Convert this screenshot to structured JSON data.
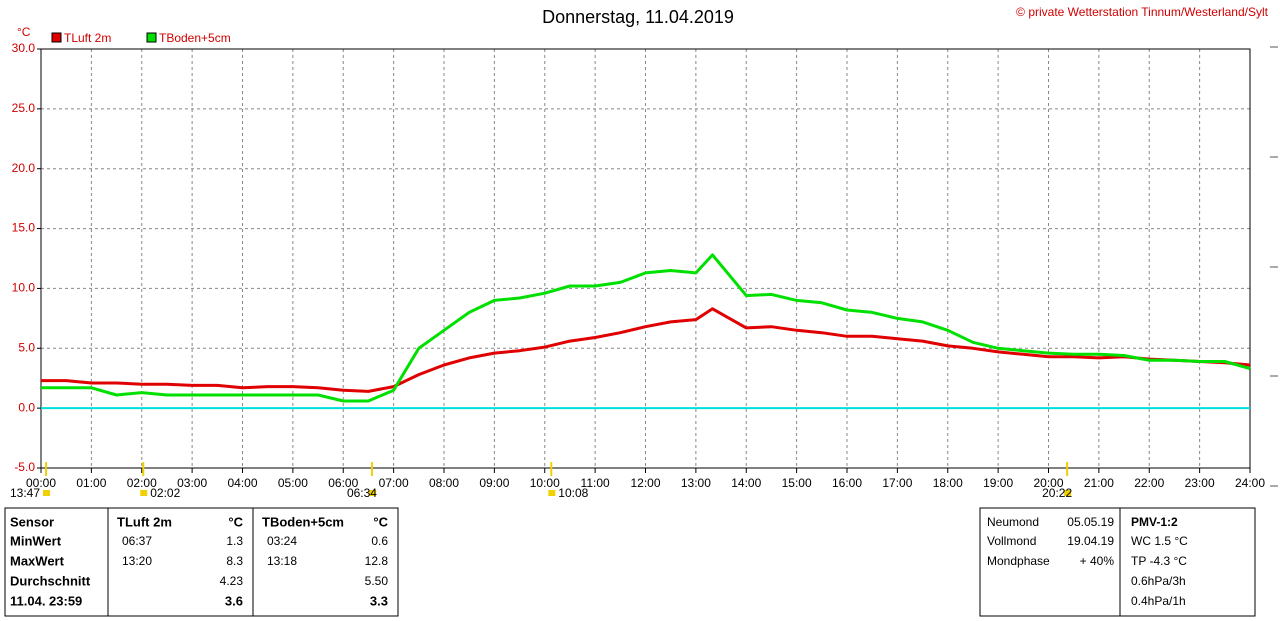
{
  "chart_data": {
    "type": "line",
    "title": "Donnerstag, 11.04.2019",
    "copyright": "© private Wetterstation Tinnum/Westerland/Sylt",
    "y_unit": "°C",
    "x": [
      0,
      0.5,
      1,
      1.5,
      2,
      2.5,
      3,
      3.5,
      4,
      4.5,
      5,
      5.5,
      6,
      6.5,
      7,
      7.5,
      8,
      8.5,
      9,
      9.5,
      10,
      10.5,
      11,
      11.5,
      12,
      12.5,
      13,
      13.33,
      14,
      14.5,
      15,
      15.5,
      16,
      16.5,
      17,
      17.5,
      18,
      18.5,
      19,
      19.5,
      20,
      20.5,
      21,
      21.5,
      22,
      22.5,
      23,
      23.5,
      24
    ],
    "series": [
      {
        "name": "TLuft 2m",
        "color": "#e00000",
        "values": [
          2.3,
          2.3,
          2.1,
          2.1,
          2.0,
          2.0,
          1.9,
          1.9,
          1.7,
          1.8,
          1.8,
          1.7,
          1.5,
          1.4,
          1.8,
          2.8,
          3.6,
          4.2,
          4.6,
          4.8,
          5.1,
          5.6,
          5.9,
          6.3,
          6.8,
          7.2,
          7.4,
          8.3,
          6.7,
          6.8,
          6.5,
          6.3,
          6.0,
          6.0,
          5.8,
          5.6,
          5.2,
          5.0,
          4.7,
          4.5,
          4.3,
          4.3,
          4.2,
          4.3,
          4.1,
          4.0,
          3.9,
          3.8,
          3.6
        ]
      },
      {
        "name": "TBoden+5cm",
        "color": "#00e000",
        "values": [
          1.7,
          1.7,
          1.7,
          1.1,
          1.3,
          1.1,
          1.1,
          1.1,
          1.1,
          1.1,
          1.1,
          1.1,
          0.6,
          0.6,
          1.5,
          5.0,
          6.5,
          8.0,
          9.0,
          9.2,
          9.6,
          10.2,
          10.2,
          10.5,
          11.3,
          11.5,
          11.3,
          12.8,
          9.4,
          9.5,
          9.0,
          8.8,
          8.2,
          8.0,
          7.5,
          7.2,
          6.5,
          5.5,
          5.0,
          4.8,
          4.6,
          4.5,
          4.5,
          4.4,
          4.0,
          4.0,
          3.9,
          3.9,
          3.3
        ]
      }
    ],
    "xlim": [
      0,
      24
    ],
    "xticks": [
      {
        "value": 0,
        "label": "00:00"
      },
      {
        "value": 1,
        "label": "01:00"
      },
      {
        "value": 2,
        "label": "02:00"
      },
      {
        "value": 3,
        "label": "03:00"
      },
      {
        "value": 4,
        "label": "04:00"
      },
      {
        "value": 5,
        "label": "05:00"
      },
      {
        "value": 6,
        "label": "06:00"
      },
      {
        "value": 7,
        "label": "07:00"
      },
      {
        "value": 8,
        "label": "08:00"
      },
      {
        "value": 9,
        "label": "09:00"
      },
      {
        "value": 10,
        "label": "10:00"
      },
      {
        "value": 11,
        "label": "11:00"
      },
      {
        "value": 12,
        "label": "12:00"
      },
      {
        "value": 13,
        "label": "13:00"
      },
      {
        "value": 14,
        "label": "14:00"
      },
      {
        "value": 15,
        "label": "15:00"
      },
      {
        "value": 16,
        "label": "16:00"
      },
      {
        "value": 17,
        "label": "17:00"
      },
      {
        "value": 18,
        "label": "18:00"
      },
      {
        "value": 19,
        "label": "19:00"
      },
      {
        "value": 20,
        "label": "20:00"
      },
      {
        "value": 21,
        "label": "21:00"
      },
      {
        "value": 22,
        "label": "22:00"
      },
      {
        "value": 23,
        "label": "23:00"
      },
      {
        "value": 24,
        "label": "24:00"
      }
    ],
    "ylim": [
      -5,
      30
    ],
    "yticks": [
      {
        "value": -5,
        "label": "-5.0"
      },
      {
        "value": 0,
        "label": "0.0"
      },
      {
        "value": 5,
        "label": "5.0"
      },
      {
        "value": 10,
        "label": "10.0"
      },
      {
        "value": 15,
        "label": "15.0"
      },
      {
        "value": 20,
        "label": "20.0"
      },
      {
        "value": 25,
        "label": "25.0"
      },
      {
        "value": 30,
        "label": "30.0"
      }
    ],
    "grid": true,
    "hline": {
      "value": 0,
      "color": "#00dede"
    },
    "annotations": [
      {
        "label": "13:47",
        "x": 0.1
      },
      {
        "label": "02:02",
        "x": 2.03
      },
      {
        "label": "06:34",
        "x": 6.57
      },
      {
        "label": "10:08",
        "x": 10.13
      },
      {
        "label": "20:22",
        "x": 20.37
      }
    ]
  },
  "stats": {
    "header": [
      "Sensor",
      "TLuft 2m",
      "°C",
      "TBoden+5cm",
      "°C"
    ],
    "rows": [
      [
        "MinWert",
        "06:37",
        "1.3",
        "03:24",
        "0.6"
      ],
      [
        "MaxWert",
        "13:20",
        "8.3",
        "13:18",
        "12.8"
      ],
      [
        "Durchschnitt",
        null,
        "4.23",
        null,
        "5.50"
      ],
      [
        "11.04. 23:59",
        null,
        "3.6",
        null,
        "3.3"
      ]
    ]
  },
  "moon": [
    [
      "Neumond",
      "05.05.19"
    ],
    [
      "Vollmond",
      "19.04.19"
    ],
    [
      "Mondphase",
      "+ 40%"
    ]
  ],
  "pmv": [
    "PMV-1:2",
    "WC 1.5 °C",
    "TP -4.3 °C",
    "0.6hPa/3h",
    "0.4hPa/1h"
  ]
}
